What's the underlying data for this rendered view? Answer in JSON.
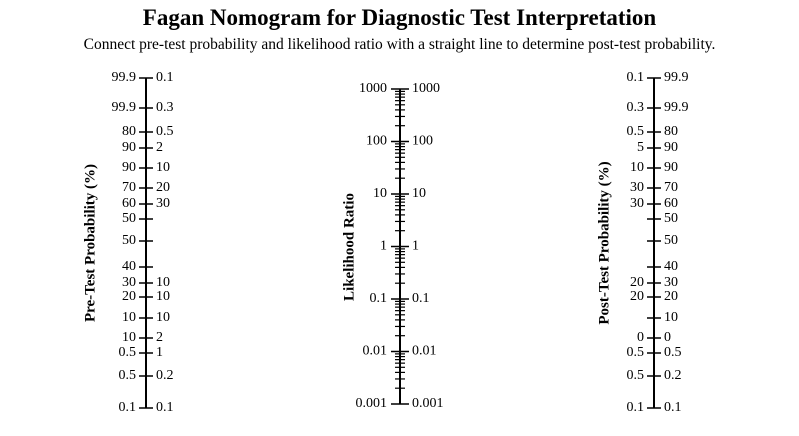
{
  "title": "Fagan Nomogram for Diagnostic Test Interpretation",
  "subtitle": "Connect pre-test probability and likelihood ratio with a straight line to determine post-test probability.",
  "axes": [
    {
      "id": "pretest",
      "title": "Pre-Test Probability (%)",
      "rows": [
        {
          "l": "99.9",
          "r": "0.1",
          "major": true
        },
        {
          "l": "99.9",
          "r": "0.3",
          "major": true
        },
        {
          "l": "80",
          "r": "0.5",
          "major": true
        },
        {
          "l": "90",
          "r": "2",
          "major": true
        },
        {
          "l": "90",
          "r": "10",
          "major": true
        },
        {
          "l": "70",
          "r": "20",
          "major": true
        },
        {
          "l": "60",
          "r": "30",
          "major": true
        },
        {
          "l": "50",
          "r": "",
          "major": true
        },
        {
          "l": "50",
          "r": "",
          "major": true
        },
        {
          "l": "40",
          "r": "",
          "major": true
        },
        {
          "l": "30",
          "r": "10",
          "major": true
        },
        {
          "l": "20",
          "r": "10",
          "major": true
        },
        {
          "l": "10",
          "r": "10",
          "major": true
        },
        {
          "l": "10",
          "r": "2",
          "major": true
        },
        {
          "l": "0.5",
          "r": "1",
          "major": true
        },
        {
          "l": "0.5",
          "r": "0.2",
          "major": true
        },
        {
          "l": "0.1",
          "r": "0.1",
          "major": true
        }
      ]
    },
    {
      "id": "likelihood",
      "title": "Likelihood Ratio",
      "rows": [
        {
          "l": "1000",
          "r": "1000"
        },
        {
          "l": "100",
          "r": "100"
        },
        {
          "l": "10",
          "r": "10"
        },
        {
          "l": "1",
          "r": "1"
        },
        {
          "l": "0.1",
          "r": "0.1"
        },
        {
          "l": "0.01",
          "r": "0.01"
        },
        {
          "l": "0.001",
          "r": "0.001"
        }
      ]
    },
    {
      "id": "posttest",
      "title": "Post-Test Probability (%)",
      "rows": [
        {
          "l": "0.1",
          "r": "99.9"
        },
        {
          "l": "0.3",
          "r": "99.9"
        },
        {
          "l": "0.5",
          "r": "80"
        },
        {
          "l": "5",
          "r": "90"
        },
        {
          "l": "10",
          "r": "90"
        },
        {
          "l": "30",
          "r": "70"
        },
        {
          "l": "30",
          "r": "60"
        },
        {
          "l": "",
          "r": "50"
        },
        {
          "l": "",
          "r": "50"
        },
        {
          "l": "",
          "r": "40"
        },
        {
          "l": "20",
          "r": "30"
        },
        {
          "l": "20",
          "r": "20"
        },
        {
          "l": "",
          "r": "10"
        },
        {
          "l": "0",
          "r": "0"
        },
        {
          "l": "0.5",
          "r": "0.5"
        },
        {
          "l": "0.5",
          "r": "0.2"
        },
        {
          "l": "0.1",
          "r": "0.1"
        }
      ]
    }
  ]
}
